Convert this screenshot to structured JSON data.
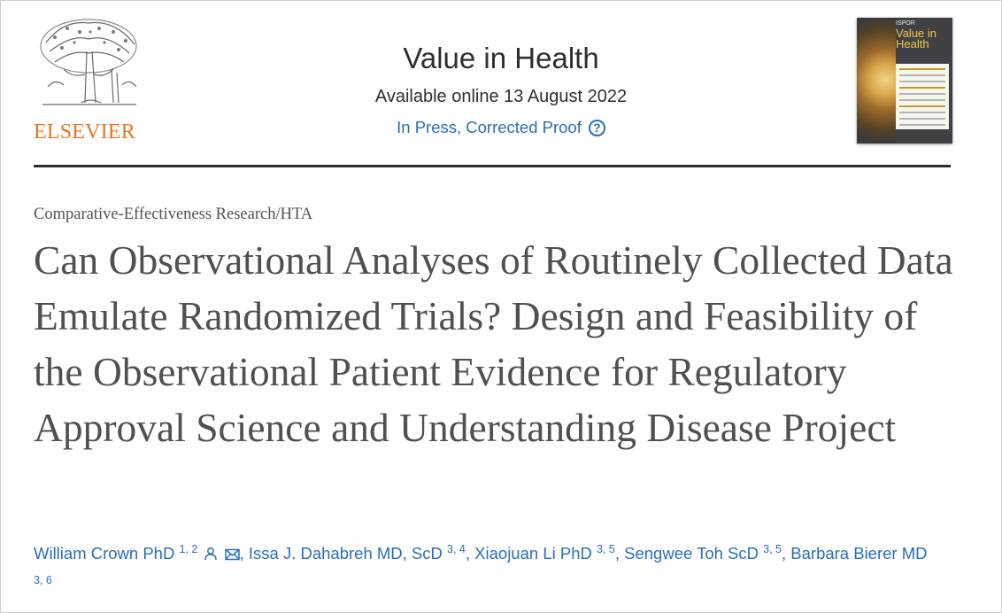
{
  "publisher": {
    "name": "ELSEVIER",
    "color": "#e87524"
  },
  "journal": {
    "title": "Value in Health",
    "availability": "Available online 13 August 2022",
    "status": "In Press, Corrected Proof",
    "status_help_icon": "question-circle-icon",
    "link_color": "#2a6ebb"
  },
  "cover": {
    "brand": "ISPOR",
    "title_line1": "Value in",
    "title_line2": "Health"
  },
  "article": {
    "type": "Comparative-Effectiveness Research/HTA",
    "title": "Can Observational Analyses of Routinely Collected Data Emulate Randomized Trials? Design and Feasibility of the Observational Patient Evidence for Regulatory Approval Science and Understanding Disease Project"
  },
  "authors": [
    {
      "name": "William Crown PhD",
      "affil": "1, 2",
      "icons": [
        "person-icon",
        "envelope-icon"
      ],
      "sep": ", "
    },
    {
      "name": "Issa J. Dahabreh MD, ScD",
      "affil": "3, 4",
      "sep": ", "
    },
    {
      "name": "Xiaojuan Li PhD",
      "affil": "3, 5",
      "sep": ", "
    },
    {
      "name": "Sengwee Toh ScD",
      "affil": "3, 5",
      "sep": ", "
    },
    {
      "name": "Barbara Bierer MD",
      "affil": "3, 6",
      "sep": ""
    }
  ]
}
